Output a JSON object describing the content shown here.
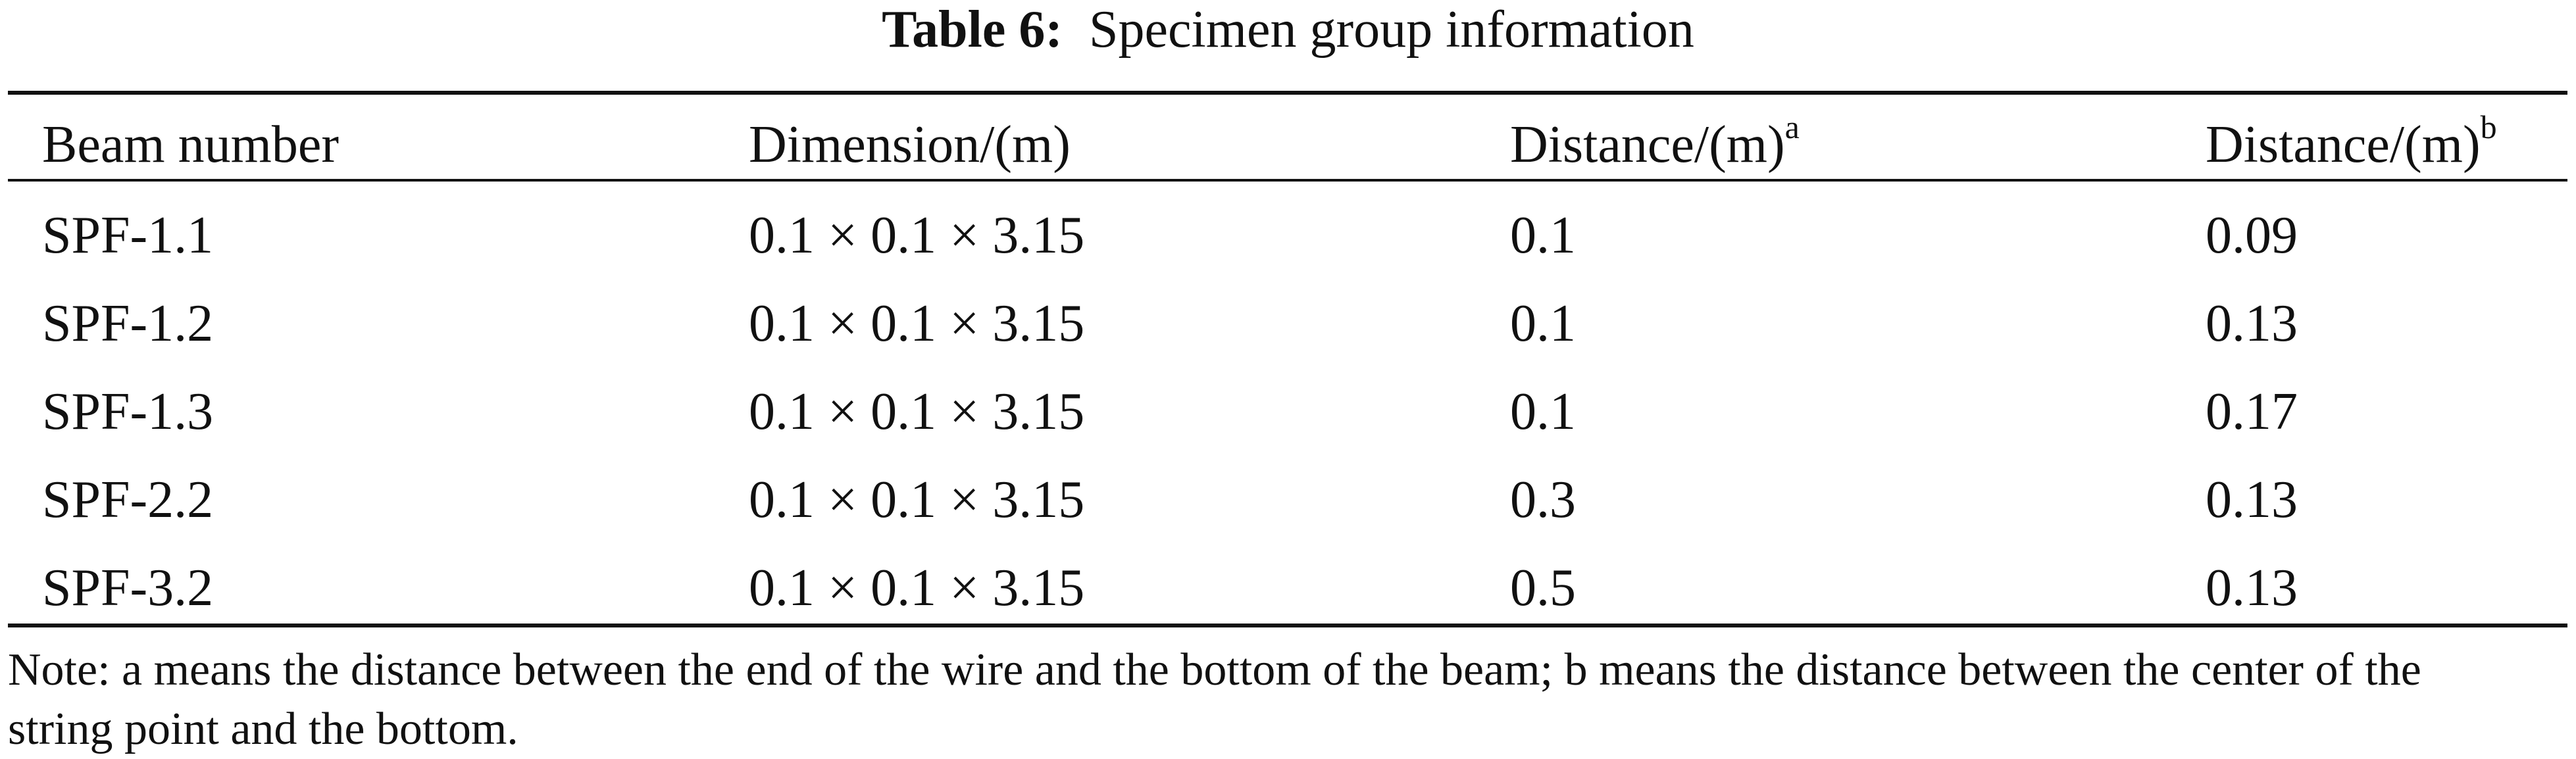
{
  "caption": {
    "label": "Table 6:",
    "title": "Specimen group information"
  },
  "table": {
    "headers": [
      {
        "text": "Beam number",
        "sup": ""
      },
      {
        "text": "Dimension/(m)",
        "sup": ""
      },
      {
        "text": "Distance/(m)",
        "sup": "a"
      },
      {
        "text": "Distance/(m)",
        "sup": "b"
      }
    ],
    "rows": [
      [
        "SPF-1.1",
        "0.1 × 0.1 × 3.15",
        "0.1",
        "0.09"
      ],
      [
        "SPF-1.2",
        "0.1 × 0.1 × 3.15",
        "0.1",
        "0.13"
      ],
      [
        "SPF-1.3",
        "0.1 × 0.1 × 3.15",
        "0.1",
        "0.17"
      ],
      [
        "SPF-2.2",
        "0.1 × 0.1 × 3.15",
        "0.3",
        "0.13"
      ],
      [
        "SPF-3.2",
        "0.1 × 0.1 × 3.15",
        "0.5",
        "0.13"
      ]
    ]
  },
  "note": {
    "line1": "Note: a means the distance between the end of the wire and the bottom of the beam; b means the distance between the center of the",
    "line2": "string point and the bottom."
  }
}
